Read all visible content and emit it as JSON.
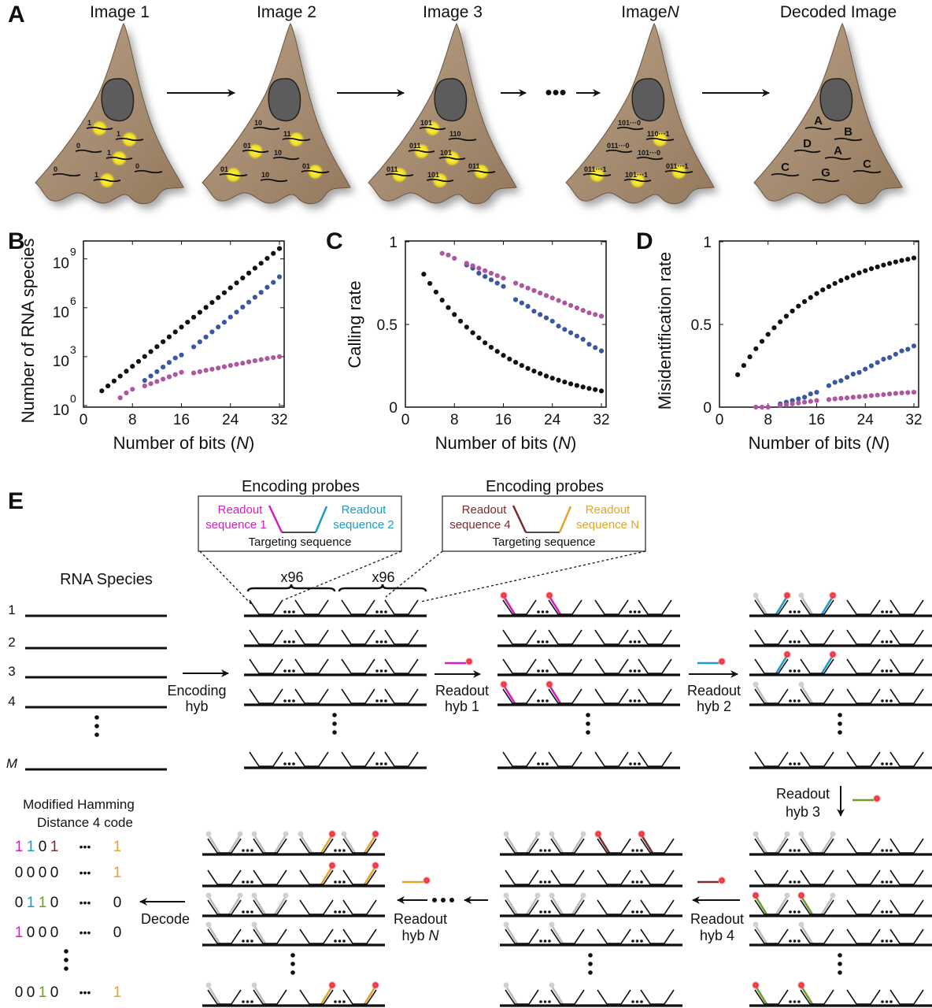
{
  "panel_labels": {
    "A": "A",
    "B": "B",
    "C": "C",
    "D": "D",
    "E": "E"
  },
  "colors": {
    "bit1": "#d21fc2",
    "bit2": "#1b9cc6",
    "bit3": "#6f9e2c",
    "bit4": "#7b2b2b",
    "bitN": "#e3a42a",
    "fluor": "#ee2f3a",
    "grey_readout": "#bdbdbd",
    "cell": "#a88f73",
    "nucleus": "#5c5c5c",
    "spot": "#f4e422"
  },
  "panelA": {
    "ellipsis": "•••",
    "cells": [
      {
        "title": "Image 1",
        "title_italic": "",
        "spots": [
          {
            "label": "1",
            "lit": true
          },
          {
            "label": "1",
            "lit": true
          },
          {
            "label": "0",
            "lit": false
          },
          {
            "label": "1",
            "lit": true
          },
          {
            "label": "0",
            "lit": false
          },
          {
            "label": "1",
            "lit": true
          },
          {
            "label": "0",
            "lit": false
          }
        ]
      },
      {
        "title": "Image 2",
        "title_italic": "",
        "spots": [
          {
            "label": "10",
            "lit": false
          },
          {
            "label": "11",
            "lit": true
          },
          {
            "label": "01",
            "lit": true
          },
          {
            "label": "10",
            "lit": false
          },
          {
            "label": "01",
            "lit": true
          },
          {
            "label": "10",
            "lit": false
          },
          {
            "label": "01",
            "lit": true
          }
        ]
      },
      {
        "title": "Image 3",
        "title_italic": "",
        "spots": [
          {
            "label": "101",
            "lit": true
          },
          {
            "label": "110",
            "lit": false
          },
          {
            "label": "011",
            "lit": true
          },
          {
            "label": "101",
            "lit": true
          },
          {
            "label": "011",
            "lit": true
          },
          {
            "label": "101",
            "lit": true
          },
          {
            "label": "011",
            "lit": true
          }
        ]
      },
      {
        "title": "Image",
        "title_italic": "N",
        "spots": [
          {
            "label": "101···0",
            "lit": false
          },
          {
            "label": "110···1",
            "lit": true
          },
          {
            "label": "011···0",
            "lit": false
          },
          {
            "label": "101···0",
            "lit": false
          },
          {
            "label": "011···1",
            "lit": true
          },
          {
            "label": "101···1",
            "lit": true
          },
          {
            "label": "011···1",
            "lit": true
          }
        ]
      },
      {
        "title": "Decoded Image",
        "title_italic": "",
        "spots": [
          {
            "label": "A",
            "lit": false
          },
          {
            "label": "B",
            "lit": false
          },
          {
            "label": "D",
            "lit": false
          },
          {
            "label": "A",
            "lit": false
          },
          {
            "label": "C",
            "lit": false
          },
          {
            "label": "G",
            "lit": false
          },
          {
            "label": "C",
            "lit": false
          }
        ]
      }
    ]
  },
  "chart_data": [
    {
      "type": "scatter",
      "panel": "B",
      "xlabel": "Number of bits (",
      "xlabel_italic": "N",
      "xlabel_end": ")",
      "ylabel": "Number of RNA species",
      "x_ticks": [
        "0",
        "8",
        "16",
        "24",
        "32"
      ],
      "y_scale": "log",
      "y_ticks": [
        1,
        1000,
        1000000,
        1000000000
      ],
      "y_tick_labels": [
        {
          "base": "10",
          "exp": "0"
        },
        {
          "base": "10",
          "exp": "3"
        },
        {
          "base": "10",
          "exp": "6"
        },
        {
          "base": "10",
          "exp": "9"
        }
      ],
      "xlim": [
        0,
        33
      ],
      "ylim": [
        1,
        10000000000
      ],
      "grid": false,
      "series": [
        {
          "color": "#111111",
          "x": [
            3,
            4,
            5,
            6,
            7,
            8,
            9,
            10,
            11,
            12,
            13,
            14,
            15,
            16,
            17,
            18,
            19,
            20,
            21,
            22,
            23,
            24,
            25,
            26,
            27,
            28,
            29,
            30,
            31,
            32
          ],
          "y": [
            8,
            16,
            32,
            64,
            128,
            256,
            512,
            1024,
            2048,
            4096,
            8192,
            16384,
            32768,
            65536,
            131072,
            262144,
            524288,
            1048576,
            2097152,
            4194304,
            8388608,
            16777216,
            33554432,
            67108864,
            134217728,
            268435456,
            536870912,
            1073741824,
            2147483648,
            4294967296
          ]
        },
        {
          "color": "#3b57a2",
          "x": [
            10,
            11,
            12,
            13,
            14,
            15,
            16,
            18,
            19,
            20,
            21,
            22,
            23,
            24,
            25,
            26,
            27,
            28,
            29,
            30,
            31,
            32
          ],
          "y": [
            35,
            65,
            120,
            230,
            440,
            830,
            1260,
            4000,
            8100,
            16000,
            33000,
            66000,
            130000,
            270000,
            540000,
            1100000,
            2200000,
            4400000,
            8800000,
            18000000,
            36000000,
            79000000
          ]
        },
        {
          "color": "#b0559f",
          "x": [
            6,
            7,
            8,
            10,
            11,
            12,
            13,
            14,
            15,
            16,
            18,
            19,
            20,
            21,
            22,
            23,
            24,
            25,
            26,
            27,
            28,
            29,
            30,
            31,
            32
          ],
          "y": [
            3,
            6,
            10,
            16,
            22,
            30,
            42,
            58,
            80,
            110,
            100,
            120,
            145,
            170,
            200,
            240,
            290,
            340,
            400,
            480,
            560,
            660,
            780,
            880,
            1000
          ]
        }
      ]
    },
    {
      "type": "scatter",
      "panel": "C",
      "xlabel": "Number of bits (",
      "xlabel_italic": "N",
      "xlabel_end": ")",
      "ylabel": "Calling rate",
      "x_ticks": [
        "0",
        "8",
        "16",
        "24",
        "32"
      ],
      "y_scale": "linear",
      "y_ticks": [
        0,
        0.5,
        1
      ],
      "y_tick_labels": [
        {
          "base": "0",
          "exp": ""
        },
        {
          "base": "0.5",
          "exp": ""
        },
        {
          "base": "1",
          "exp": ""
        }
      ],
      "xlim": [
        0,
        33
      ],
      "ylim": [
        0,
        1
      ],
      "grid": false,
      "series": [
        {
          "color": "#111111",
          "x": [
            3,
            4,
            5,
            6,
            7,
            8,
            9,
            10,
            11,
            12,
            13,
            14,
            15,
            16,
            17,
            18,
            19,
            20,
            21,
            22,
            23,
            24,
            25,
            26,
            27,
            28,
            29,
            30,
            31,
            32
          ],
          "y": [
            0.804,
            0.748,
            0.696,
            0.647,
            0.602,
            0.56,
            0.52,
            0.484,
            0.45,
            0.419,
            0.389,
            0.362,
            0.337,
            0.313,
            0.291,
            0.271,
            0.252,
            0.234,
            0.218,
            0.203,
            0.188,
            0.175,
            0.163,
            0.152,
            0.141,
            0.131,
            0.122,
            0.113,
            0.106,
            0.098
          ]
        },
        {
          "color": "#3b57a2",
          "x": [
            10,
            11,
            12,
            13,
            14,
            15,
            16,
            18,
            19,
            20,
            21,
            22,
            23,
            24,
            25,
            26,
            27,
            28,
            29,
            30,
            31,
            32
          ],
          "y": [
            0.86,
            0.84,
            0.81,
            0.79,
            0.77,
            0.75,
            0.73,
            0.65,
            0.63,
            0.61,
            0.58,
            0.56,
            0.54,
            0.52,
            0.49,
            0.47,
            0.45,
            0.43,
            0.41,
            0.38,
            0.36,
            0.34
          ]
        },
        {
          "color": "#b0559f",
          "x": [
            6,
            7,
            8,
            10,
            11,
            12,
            13,
            14,
            15,
            16,
            18,
            19,
            20,
            21,
            22,
            23,
            24,
            25,
            26,
            27,
            28,
            29,
            30,
            31,
            32
          ],
          "y": [
            0.93,
            0.92,
            0.9,
            0.87,
            0.855,
            0.84,
            0.825,
            0.81,
            0.795,
            0.78,
            0.75,
            0.735,
            0.72,
            0.705,
            0.69,
            0.675,
            0.66,
            0.645,
            0.63,
            0.615,
            0.6,
            0.585,
            0.57,
            0.56,
            0.55
          ]
        }
      ]
    },
    {
      "type": "scatter",
      "panel": "D",
      "xlabel": "Number of bits (",
      "xlabel_italic": "N",
      "xlabel_end": ")",
      "ylabel": "Misidentification rate",
      "x_ticks": [
        "0",
        "8",
        "16",
        "24",
        "32"
      ],
      "y_scale": "linear",
      "y_ticks": [
        0,
        0.5,
        1
      ],
      "y_tick_labels": [
        {
          "base": "0",
          "exp": ""
        },
        {
          "base": "0.5",
          "exp": ""
        },
        {
          "base": "1",
          "exp": ""
        }
      ],
      "xlim": [
        0,
        33
      ],
      "ylim": [
        0,
        1
      ],
      "grid": false,
      "series": [
        {
          "color": "#111111",
          "x": [
            3,
            4,
            5,
            6,
            7,
            8,
            9,
            10,
            11,
            12,
            13,
            14,
            15,
            16,
            17,
            18,
            19,
            20,
            21,
            22,
            23,
            24,
            25,
            26,
            27,
            28,
            29,
            30,
            31,
            32
          ],
          "y": [
            0.196,
            0.252,
            0.304,
            0.353,
            0.398,
            0.44,
            0.48,
            0.516,
            0.55,
            0.581,
            0.611,
            0.638,
            0.663,
            0.687,
            0.709,
            0.729,
            0.748,
            0.766,
            0.782,
            0.797,
            0.812,
            0.825,
            0.837,
            0.848,
            0.859,
            0.869,
            0.878,
            0.887,
            0.894,
            0.902
          ]
        },
        {
          "color": "#3b57a2",
          "x": [
            10,
            11,
            12,
            13,
            14,
            15,
            16,
            18,
            19,
            20,
            21,
            22,
            23,
            24,
            25,
            26,
            27,
            28,
            29,
            30,
            31,
            32
          ],
          "y": [
            0.02,
            0.03,
            0.04,
            0.05,
            0.06,
            0.08,
            0.09,
            0.13,
            0.15,
            0.16,
            0.18,
            0.2,
            0.21,
            0.23,
            0.25,
            0.27,
            0.29,
            0.3,
            0.32,
            0.34,
            0.35,
            0.37
          ]
        },
        {
          "color": "#b0559f",
          "x": [
            6,
            7,
            8,
            10,
            11,
            12,
            13,
            14,
            15,
            16,
            18,
            19,
            20,
            21,
            22,
            23,
            24,
            25,
            26,
            27,
            28,
            29,
            30,
            31,
            32
          ],
          "y": [
            0,
            0,
            0,
            0.01,
            0.015,
            0.02,
            0.025,
            0.03,
            0.035,
            0.04,
            0.046,
            0.05,
            0.053,
            0.056,
            0.06,
            0.063,
            0.066,
            0.07,
            0.073,
            0.076,
            0.08,
            0.083,
            0.086,
            0.088,
            0.09
          ]
        }
      ]
    }
  ],
  "panelE": {
    "probe_boxes": [
      {
        "title": "Encoding probes",
        "left": [
          "Readout",
          "sequence 1"
        ],
        "right": [
          "Readout",
          "sequence 2"
        ],
        "bottom": "Targeting sequence",
        "left_color": "bit1",
        "right_color": "bit2"
      },
      {
        "title": "Encoding probes",
        "left": [
          "Readout",
          "sequence 4"
        ],
        "right": [
          "Readout",
          "sequence N"
        ],
        "bottom": "Targeting sequence",
        "left_color": "bit4",
        "right_color": "bitN"
      }
    ],
    "multiplier": [
      "x96",
      "x96"
    ],
    "rna_title": "RNA Species",
    "row_labels": [
      "1",
      "2",
      "3",
      "4",
      "M"
    ],
    "steps": {
      "encoding": [
        "Encoding",
        "hyb"
      ],
      "hyb1": [
        "Readout",
        "hyb 1"
      ],
      "hyb2": [
        "Readout",
        "hyb 2"
      ],
      "hyb3": [
        "Readout",
        "hyb 3"
      ],
      "hyb4": [
        "Readout",
        "hyb 4"
      ],
      "hybN": [
        "Readout",
        "hyb ",
        "N"
      ],
      "decode": "Decode"
    },
    "code_title": [
      "Modified Hamming",
      "Distance 4 code"
    ],
    "ellipsis": "•••",
    "codes": [
      {
        "bits": [
          "1",
          "1",
          "0",
          "1"
        ],
        "last": "1"
      },
      {
        "bits": [
          "0",
          "0",
          "0",
          "0"
        ],
        "last": "1"
      },
      {
        "bits": [
          "0",
          "1",
          "1",
          "0"
        ],
        "last": "0"
      },
      {
        "bits": [
          "1",
          "0",
          "0",
          "0"
        ],
        "last": "0"
      },
      {
        "bits": [
          "0",
          "0",
          "1",
          "0"
        ],
        "last": "1"
      }
    ]
  }
}
